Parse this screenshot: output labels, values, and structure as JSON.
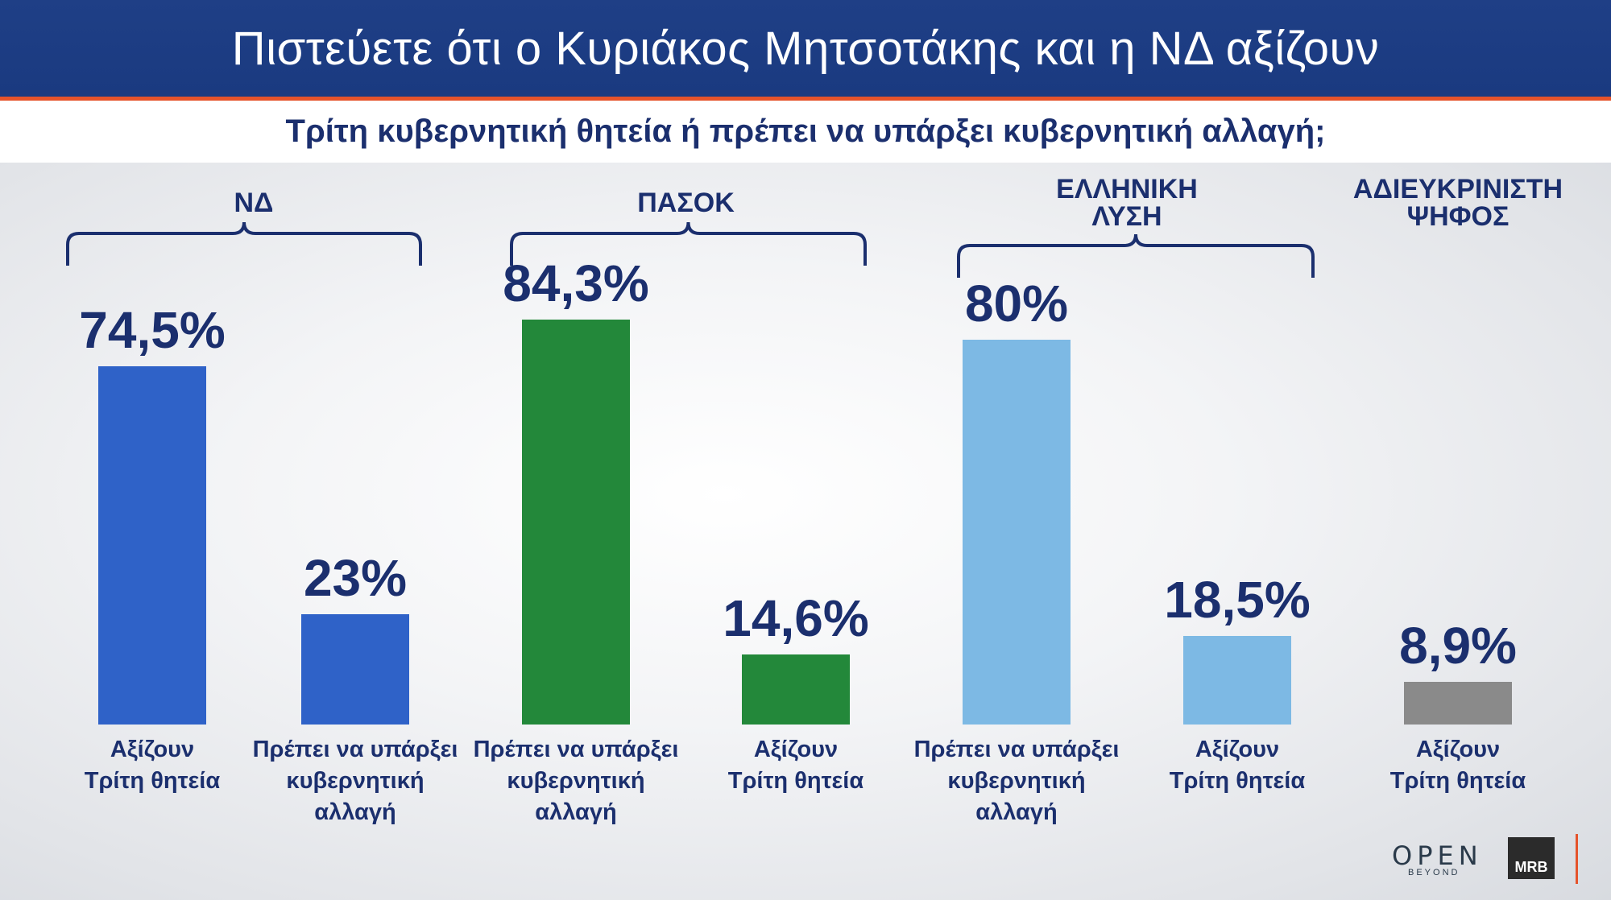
{
  "header": {
    "title": "Πιστεύετε ότι ο Κυριάκος Μητσοτάκης και η ΝΔ αξίζουν",
    "subtitle": "Τρίτη κυβερνητική θητεία ή πρέπει να υπάρξει κυβερνητική αλλαγή;"
  },
  "chart_data": {
    "type": "bar",
    "title": "Πιστεύετε ότι ο Κυριάκος Μητσοτάκης και η ΝΔ αξίζουν",
    "subtitle": "Τρίτη κυβερνητική θητεία ή πρέπει να υπάρξει κυβερνητική αλλαγή;",
    "ylim": [
      0,
      100
    ],
    "groups": [
      {
        "name": "ΝΔ",
        "color": "#2f62c8",
        "bars": [
          {
            "category": "Αξίζουν\nΤρίτη θητεία",
            "value": 74.5,
            "label": "74,5%"
          },
          {
            "category": "Πρέπει να υπάρξει\nκυβερνητική\nαλλαγή",
            "value": 23,
            "label": "23%"
          }
        ]
      },
      {
        "name": "ΠΑΣΟΚ",
        "color": "#23883a",
        "bars": [
          {
            "category": "Πρέπει να υπάρξει\nκυβερνητική\nαλλαγή",
            "value": 84.3,
            "label": "84,3%"
          },
          {
            "category": "Αξίζουν\nΤρίτη θητεία",
            "value": 14.6,
            "label": "14,6%"
          }
        ]
      },
      {
        "name": "ΕΛΛΗΝΙΚΗ\nΛΥΣΗ",
        "color": "#7db9e4",
        "bars": [
          {
            "category": "Πρέπει να υπάρξει\nκυβερνητική\nαλλαγή",
            "value": 80,
            "label": "80%"
          },
          {
            "category": "Αξίζουν\nΤρίτη θητεία",
            "value": 18.5,
            "label": "18,5%"
          }
        ]
      },
      {
        "name": "ΑΔΙΕΥΚΡΙΝΙΣΤΗ\nΨΗΦΟΣ",
        "color": "#8a8a8a",
        "bars": [
          {
            "category": "Αξίζουν\nΤρίτη θητεία",
            "value": 8.9,
            "label": "8,9%"
          }
        ]
      }
    ]
  },
  "logos": {
    "open": "OPEN",
    "open_sub": "BEYOND",
    "mrb": "MRB"
  }
}
